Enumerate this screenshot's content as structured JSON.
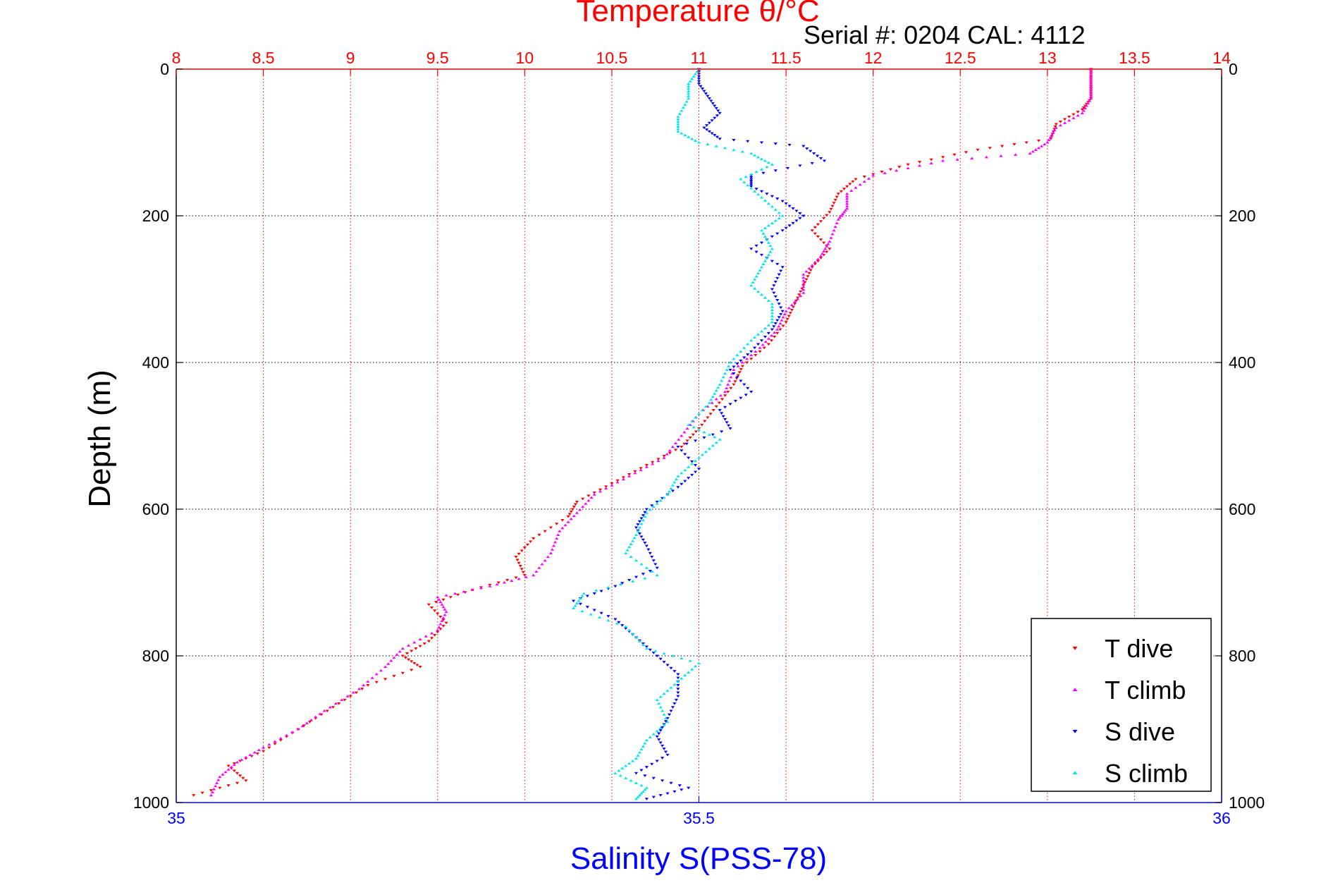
{
  "header": {
    "serial_text": "Serial #: 0204  CAL: 4112"
  },
  "chart_data": {
    "type": "scatter",
    "title": "Temperature θ/°C",
    "xlabel_top": "Temperature θ/°C",
    "xlabel_bottom": "Salinity S(PSS-78)",
    "ylabel": "Depth (m)",
    "temperature_axis": {
      "range": [
        8,
        14
      ],
      "ticks": [
        "8",
        "8.5",
        "9",
        "9.5",
        "10",
        "10.5",
        "11",
        "11.5",
        "12",
        "12.5",
        "13",
        "13.5",
        "14"
      ],
      "color": "#ff0000"
    },
    "salinity_axis": {
      "range": [
        35,
        36
      ],
      "ticks": [
        "35",
        "35.5",
        "36"
      ],
      "color": "#0000ff"
    },
    "depth_axis": {
      "range": [
        0,
        1000
      ],
      "reversed": true,
      "ticks": [
        "0",
        "200",
        "400",
        "600",
        "800",
        "1000"
      ]
    },
    "grid": true,
    "legend": {
      "placement": "bottom-right",
      "entries": [
        "T dive",
        "T climb",
        "S dive",
        "S climb"
      ]
    },
    "series": [
      {
        "name": "T dive",
        "variable": "temperature",
        "color": "#ff0000",
        "marker": "triangle-down",
        "points": [
          [
            13.25,
            0
          ],
          [
            13.25,
            20
          ],
          [
            13.25,
            40
          ],
          [
            13.2,
            55
          ],
          [
            13.05,
            75
          ],
          [
            13.02,
            95
          ],
          [
            12.6,
            110
          ],
          [
            12.2,
            130
          ],
          [
            11.9,
            150
          ],
          [
            11.8,
            170
          ],
          [
            11.75,
            195
          ],
          [
            11.65,
            220
          ],
          [
            11.75,
            245
          ],
          [
            11.65,
            270
          ],
          [
            11.6,
            295
          ],
          [
            11.55,
            320
          ],
          [
            11.5,
            345
          ],
          [
            11.4,
            375
          ],
          [
            11.25,
            405
          ],
          [
            11.2,
            430
          ],
          [
            11.1,
            460
          ],
          [
            11.0,
            490
          ],
          [
            10.9,
            515
          ],
          [
            10.7,
            540
          ],
          [
            10.5,
            565
          ],
          [
            10.3,
            590
          ],
          [
            10.25,
            610
          ],
          [
            10.05,
            640
          ],
          [
            9.95,
            665
          ],
          [
            10.0,
            690
          ],
          [
            9.7,
            710
          ],
          [
            9.45,
            730
          ],
          [
            9.55,
            755
          ],
          [
            9.45,
            780
          ],
          [
            9.3,
            800
          ],
          [
            9.4,
            815
          ],
          [
            9.1,
            840
          ],
          [
            8.9,
            870
          ],
          [
            8.7,
            900
          ],
          [
            8.5,
            930
          ],
          [
            8.3,
            950
          ],
          [
            8.4,
            970
          ],
          [
            8.1,
            990
          ]
        ]
      },
      {
        "name": "T climb",
        "variable": "temperature",
        "color": "#ff00ff",
        "marker": "triangle-up",
        "points": [
          [
            13.25,
            0
          ],
          [
            13.25,
            20
          ],
          [
            13.25,
            40
          ],
          [
            13.2,
            60
          ],
          [
            13.05,
            80
          ],
          [
            13.0,
            100
          ],
          [
            12.9,
            115
          ],
          [
            12.4,
            125
          ],
          [
            12.0,
            145
          ],
          [
            11.85,
            170
          ],
          [
            11.85,
            190
          ],
          [
            11.8,
            205
          ],
          [
            11.75,
            235
          ],
          [
            11.7,
            255
          ],
          [
            11.6,
            280
          ],
          [
            11.6,
            305
          ],
          [
            11.5,
            330
          ],
          [
            11.45,
            355
          ],
          [
            11.35,
            380
          ],
          [
            11.2,
            410
          ],
          [
            11.15,
            440
          ],
          [
            11.0,
            470
          ],
          [
            10.9,
            500
          ],
          [
            10.8,
            530
          ],
          [
            10.6,
            555
          ],
          [
            10.4,
            580
          ],
          [
            10.3,
            605
          ],
          [
            10.2,
            630
          ],
          [
            10.15,
            660
          ],
          [
            10.05,
            690
          ],
          [
            9.8,
            705
          ],
          [
            9.5,
            720
          ],
          [
            9.55,
            740
          ],
          [
            9.5,
            765
          ],
          [
            9.3,
            790
          ],
          [
            9.2,
            815
          ],
          [
            9.05,
            845
          ],
          [
            8.85,
            875
          ],
          [
            8.7,
            900
          ],
          [
            8.5,
            925
          ],
          [
            8.35,
            945
          ],
          [
            8.25,
            965
          ],
          [
            8.2,
            990
          ]
        ]
      },
      {
        "name": "S dive",
        "variable": "salinity",
        "color": "#0000ff",
        "marker": "triangle-down",
        "points": [
          [
            35.5,
            0
          ],
          [
            35.5,
            20
          ],
          [
            35.51,
            40
          ],
          [
            35.52,
            60
          ],
          [
            35.505,
            80
          ],
          [
            35.52,
            95
          ],
          [
            35.6,
            105
          ],
          [
            35.62,
            125
          ],
          [
            35.55,
            145
          ],
          [
            35.55,
            160
          ],
          [
            35.58,
            180
          ],
          [
            35.6,
            200
          ],
          [
            35.58,
            220
          ],
          [
            35.55,
            245
          ],
          [
            35.58,
            270
          ],
          [
            35.57,
            300
          ],
          [
            35.58,
            330
          ],
          [
            35.57,
            355
          ],
          [
            35.55,
            385
          ],
          [
            35.53,
            410
          ],
          [
            35.55,
            440
          ],
          [
            35.52,
            465
          ],
          [
            35.53,
            490
          ],
          [
            35.48,
            515
          ],
          [
            35.5,
            545
          ],
          [
            35.48,
            570
          ],
          [
            35.45,
            600
          ],
          [
            35.44,
            625
          ],
          [
            35.45,
            650
          ],
          [
            35.46,
            680
          ],
          [
            35.42,
            705
          ],
          [
            35.38,
            725
          ],
          [
            35.42,
            750
          ],
          [
            35.44,
            775
          ],
          [
            35.46,
            800
          ],
          [
            35.48,
            825
          ],
          [
            35.48,
            855
          ],
          [
            35.47,
            885
          ],
          [
            35.46,
            910
          ],
          [
            35.47,
            935
          ],
          [
            35.44,
            960
          ],
          [
            35.49,
            980
          ],
          [
            35.45,
            995
          ]
        ]
      },
      {
        "name": "S climb",
        "variable": "salinity",
        "color": "#00e5ee",
        "marker": "triangle-up",
        "points": [
          [
            35.5,
            0
          ],
          [
            35.49,
            20
          ],
          [
            35.49,
            40
          ],
          [
            35.48,
            65
          ],
          [
            35.48,
            85
          ],
          [
            35.5,
            100
          ],
          [
            35.55,
            115
          ],
          [
            35.57,
            130
          ],
          [
            35.54,
            150
          ],
          [
            35.56,
            175
          ],
          [
            35.58,
            200
          ],
          [
            35.56,
            220
          ],
          [
            35.57,
            245
          ],
          [
            35.56,
            270
          ],
          [
            35.55,
            295
          ],
          [
            35.57,
            320
          ],
          [
            35.57,
            345
          ],
          [
            35.55,
            370
          ],
          [
            35.53,
            400
          ],
          [
            35.52,
            430
          ],
          [
            35.51,
            455
          ],
          [
            35.49,
            485
          ],
          [
            35.52,
            505
          ],
          [
            35.5,
            530
          ],
          [
            35.48,
            555
          ],
          [
            35.47,
            580
          ],
          [
            35.45,
            605
          ],
          [
            35.44,
            635
          ],
          [
            35.43,
            660
          ],
          [
            35.46,
            690
          ],
          [
            35.39,
            715
          ],
          [
            35.38,
            735
          ],
          [
            35.43,
            760
          ],
          [
            35.45,
            790
          ],
          [
            35.5,
            810
          ],
          [
            35.48,
            835
          ],
          [
            35.46,
            860
          ],
          [
            35.47,
            890
          ],
          [
            35.45,
            915
          ],
          [
            35.44,
            940
          ],
          [
            35.42,
            960
          ],
          [
            35.45,
            980
          ],
          [
            35.44,
            995
          ]
        ]
      }
    ]
  }
}
